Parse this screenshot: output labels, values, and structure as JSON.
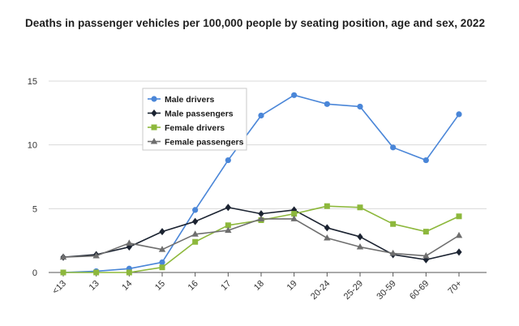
{
  "chart_data": {
    "type": "line",
    "title": "Deaths in passenger vehicles per 100,000 people by seating position, age and sex, 2022",
    "xlabel": "",
    "ylabel": "",
    "ylim": [
      0,
      15
    ],
    "yticks": [
      0,
      5,
      10,
      15
    ],
    "grid": true,
    "legend_position": "top-left inside plot",
    "categories": [
      "<13",
      "13",
      "14",
      "15",
      "16",
      "17",
      "18",
      "19",
      "20-24",
      "25-29",
      "30-59",
      "60-69",
      "70+"
    ],
    "series": [
      {
        "name": "Male drivers",
        "marker": "circle",
        "color": "#4a86d8",
        "values": [
          0,
          0.1,
          0.3,
          0.8,
          4.9,
          8.8,
          12.3,
          13.9,
          13.2,
          13.0,
          9.8,
          8.8,
          12.4
        ]
      },
      {
        "name": "Male passengers",
        "marker": "diamond",
        "color": "#1b2331",
        "values": [
          1.2,
          1.4,
          2.0,
          3.2,
          4.0,
          5.1,
          4.6,
          4.9,
          3.5,
          2.8,
          1.4,
          1.0,
          1.6
        ]
      },
      {
        "name": "Female drivers",
        "marker": "square",
        "color": "#8db83c",
        "values": [
          0,
          0,
          0,
          0.4,
          2.4,
          3.7,
          4.1,
          4.6,
          5.2,
          5.1,
          3.8,
          3.2,
          4.4
        ]
      },
      {
        "name": "Female passengers",
        "marker": "triangle",
        "color": "#6e6e6e",
        "values": [
          1.2,
          1.3,
          2.3,
          1.8,
          3.0,
          3.3,
          4.2,
          4.2,
          2.7,
          2.0,
          1.5,
          1.3,
          2.9
        ]
      }
    ]
  }
}
